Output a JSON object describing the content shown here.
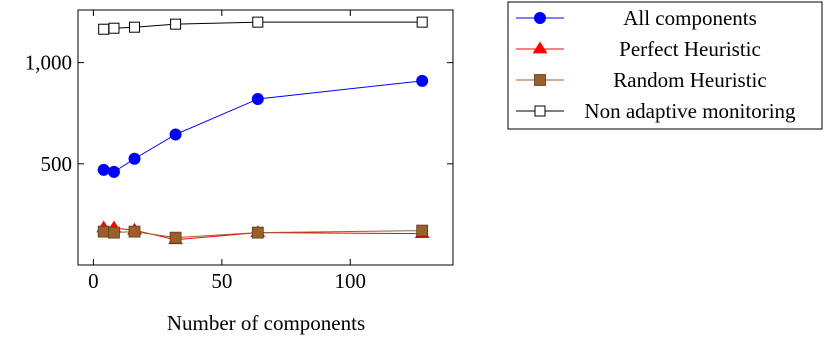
{
  "chart_data": {
    "type": "line",
    "title": "",
    "xlabel": "Number of components",
    "ylabel": "",
    "xlim": [
      -6,
      140
    ],
    "ylim": [
      0,
      1260
    ],
    "xticks": [
      0,
      50,
      100
    ],
    "xtick_labels": [
      "0",
      "50",
      "100"
    ],
    "yticks": [
      500,
      1000
    ],
    "ytick_labels": [
      "500",
      "1,000"
    ],
    "grid": false,
    "legend": "outside-right",
    "series": [
      {
        "name": "All components",
        "color": "#0000ff",
        "marker": "circle",
        "x": [
          4,
          8,
          16,
          32,
          64,
          128
        ],
        "y": [
          470,
          460,
          525,
          645,
          820,
          910
        ]
      },
      {
        "name": "Perfect Heuristic",
        "color": "#ff0000",
        "marker": "triangle",
        "x": [
          4,
          8,
          16,
          32,
          64,
          128
        ],
        "y": [
          183,
          183,
          172,
          125,
          160,
          155
        ]
      },
      {
        "name": "Random Heuristic",
        "color": "#99602e",
        "marker": "square-filled",
        "x": [
          4,
          8,
          16,
          32,
          64,
          128
        ],
        "y": [
          165,
          160,
          165,
          135,
          160,
          170
        ]
      },
      {
        "name": "Non adaptive monitoring",
        "color": "#000000",
        "marker": "square-open",
        "x": [
          4,
          8,
          16,
          32,
          64,
          128
        ],
        "y": [
          1165,
          1170,
          1175,
          1190,
          1200,
          1200
        ]
      }
    ]
  }
}
